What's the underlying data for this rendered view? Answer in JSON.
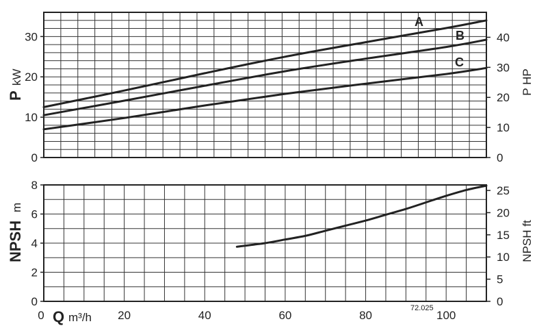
{
  "chart_data": [
    {
      "type": "line",
      "name": "power",
      "ylabel_main": "P",
      "ylabel_unit": "kW",
      "y2label": "P HP",
      "xlim": [
        0,
        110
      ],
      "ylim": [
        0,
        36
      ],
      "y2lim": [
        0,
        48.3
      ],
      "yticks": [
        0,
        10,
        20,
        30
      ],
      "y2ticks": [
        0,
        10,
        20,
        30,
        40
      ],
      "grid": true,
      "series": [
        {
          "name": "A",
          "x": [
            0,
            20,
            40,
            60,
            80,
            100,
            110
          ],
          "y": [
            12.5,
            16.6,
            20.9,
            25.0,
            28.6,
            32.1,
            34.0
          ]
        },
        {
          "name": "B",
          "x": [
            0,
            20,
            40,
            60,
            80,
            100,
            110
          ],
          "y": [
            10.5,
            14.1,
            17.8,
            21.4,
            24.5,
            27.4,
            29.2
          ]
        },
        {
          "name": "C",
          "x": [
            0,
            20,
            40,
            60,
            80,
            100,
            110
          ],
          "y": [
            7.0,
            9.8,
            12.9,
            15.8,
            18.3,
            20.7,
            22.2
          ]
        }
      ]
    },
    {
      "type": "line",
      "name": "npsh",
      "ylabel_main": "NPSH",
      "ylabel_unit": "m",
      "y2label": "NPSH ft",
      "xlabel_main": "Q",
      "xlabel_unit": "m³/h",
      "xlim": [
        0,
        110
      ],
      "ylim": [
        0,
        8
      ],
      "y2lim": [
        0,
        26.25
      ],
      "xticks": [
        0,
        20,
        40,
        60,
        80,
        100
      ],
      "yticks": [
        0,
        2,
        4,
        6,
        8
      ],
      "y2ticks": [
        0,
        5,
        10,
        15,
        20,
        25
      ],
      "grid": true,
      "series": [
        {
          "name": "",
          "x": [
            48,
            55,
            60,
            65,
            70,
            75,
            80,
            85,
            90,
            95,
            100,
            105,
            110
          ],
          "y": [
            3.75,
            4.0,
            4.25,
            4.5,
            4.85,
            5.2,
            5.55,
            5.95,
            6.35,
            6.8,
            7.25,
            7.65,
            7.95
          ]
        }
      ]
    }
  ],
  "figure_code": "72.025"
}
